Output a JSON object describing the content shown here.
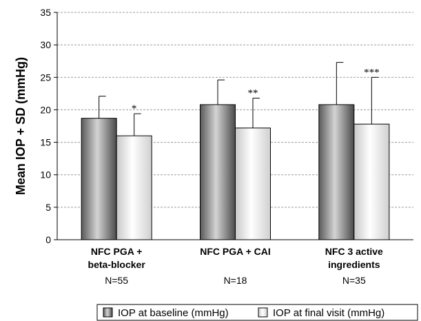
{
  "chart_data": {
    "type": "bar",
    "ylabel": "Mean IOP + SD (mmHg)",
    "ylim": [
      0,
      35
    ],
    "yticks": [
      0,
      5,
      10,
      15,
      20,
      25,
      30,
      35
    ],
    "grid": "horizontal dashed",
    "categories": [
      {
        "lines": [
          "NFC PGA +",
          "beta-blocker"
        ],
        "n": "N=55"
      },
      {
        "lines": [
          "NFC PGA + CAI"
        ],
        "n": "N=18"
      },
      {
        "lines": [
          "NFC 3 active",
          "ingredients"
        ],
        "n": "N=35"
      }
    ],
    "series": [
      {
        "name": "IOP at baseline (mmHg)",
        "values": [
          18.7,
          20.8,
          20.8
        ],
        "sd": [
          3.4,
          3.8,
          6.5
        ],
        "color": "#8c8c8c"
      },
      {
        "name": "IOP at final visit (mmHg)",
        "values": [
          16.0,
          17.2,
          17.8
        ],
        "sd": [
          3.4,
          4.6,
          7.2
        ],
        "color": "#e6e6e6"
      }
    ],
    "significance": [
      "*",
      "**",
      "***"
    ],
    "legend_position": "bottom"
  }
}
